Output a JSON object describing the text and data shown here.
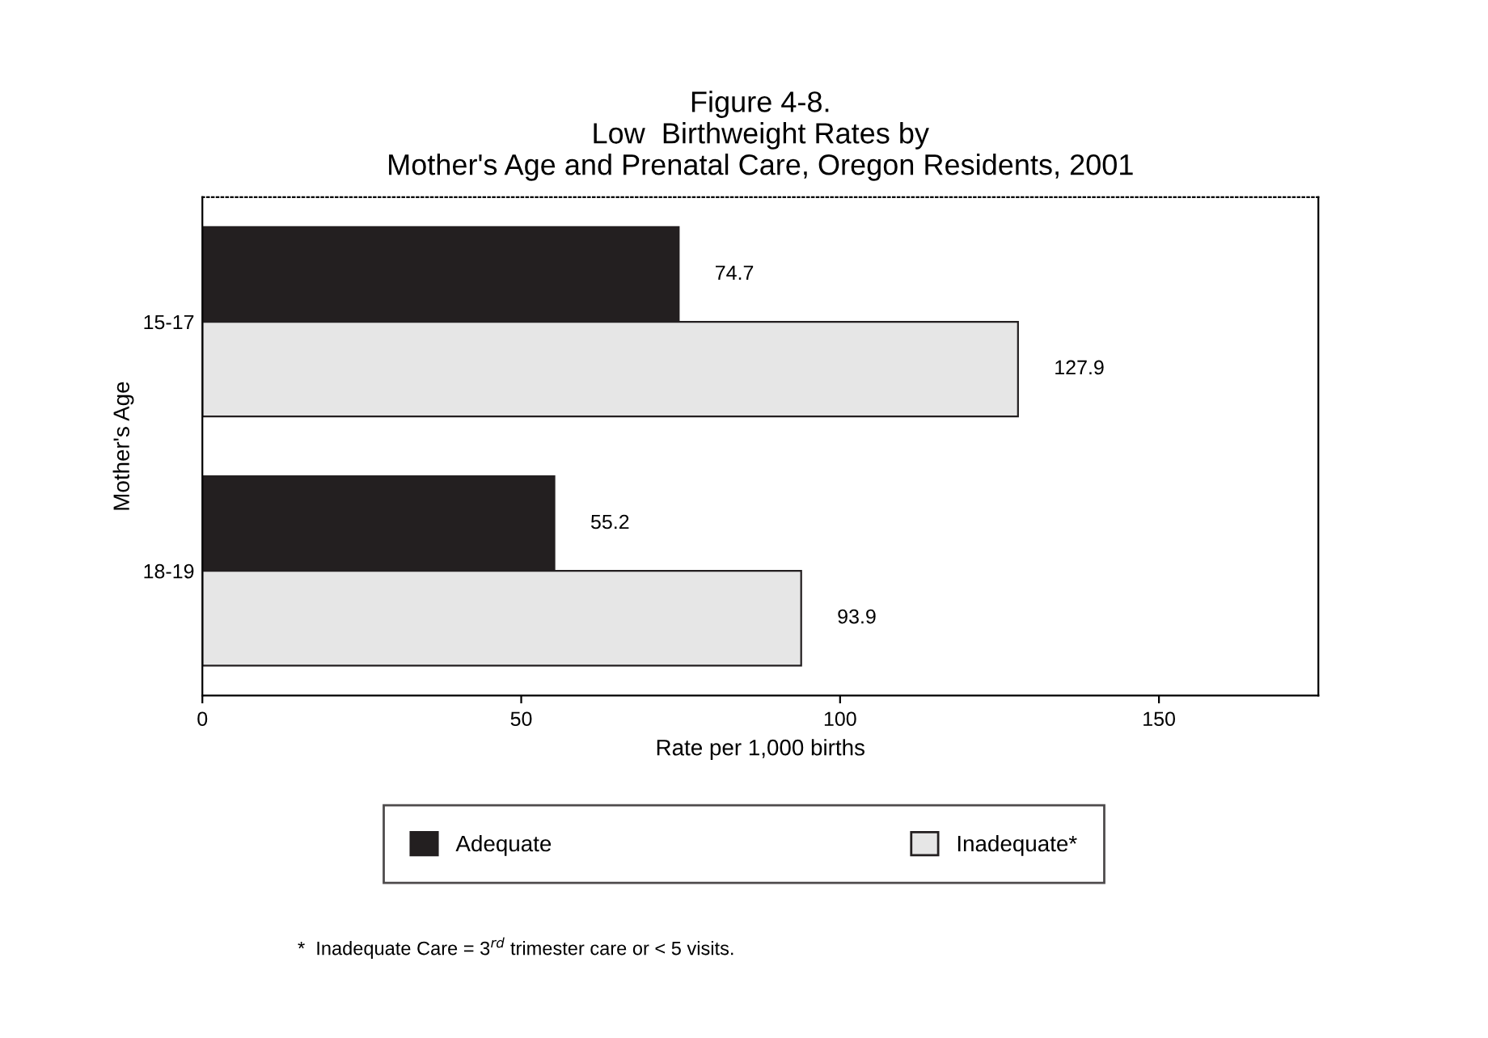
{
  "chart_data": {
    "type": "bar",
    "orientation": "horizontal",
    "title": "Figure 4-8.\nLow  Birthweight Rates by\nMother's Age and Prenatal Care, Oregon Residents, 2001",
    "xlabel": "Rate per 1,000 births",
    "ylabel": "Mother's Age",
    "categories": [
      "15-17",
      "18-19"
    ],
    "series": [
      {
        "name": "Adequate",
        "color": "#231f20",
        "values": [
          74.7,
          55.2
        ]
      },
      {
        "name": "Inadequate*",
        "color": "#e6e6e6",
        "values": [
          127.9,
          93.9
        ]
      }
    ],
    "xlim": [
      0,
      175
    ],
    "xticks": [
      0,
      50,
      100,
      150
    ],
    "data_labels": true,
    "legend": "bottom",
    "grid": false,
    "annotations": [
      "*  Inadequate Care = 3$^{rd}$ trimester care or < 5 visits."
    ]
  }
}
